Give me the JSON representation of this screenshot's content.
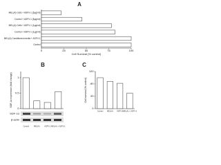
{
  "chart_data": [
    {
      "type": "hbar",
      "label": "A",
      "xlabel": "Cell Survival (% control)",
      "categories": [
        "MEL(A) Cells + ASFV-1 (5µg/ml)",
        "Control + ASFV-1 (5µg/ml)",
        "MEL(A) Cells + ASFV-1 (1µg/ml)",
        "Control + ASFV-1 (1µg/ml)",
        "MEL(A) Conditioned media + ASFV-1",
        "Control"
      ],
      "values": [
        22,
        45,
        78,
        82,
        100,
        100
      ],
      "color": "#ffffff",
      "xlim": [
        0,
        100
      ],
      "xticks": [
        0,
        25,
        50,
        75,
        100
      ]
    },
    {
      "type": "bar",
      "label": "B",
      "ylabel": "SDF-1α expression (fold change)",
      "categories": [
        "Control",
        "MEL(A)",
        "ASFV-1",
        "MEL(A) + ASFV-1"
      ],
      "values": [
        1.0,
        0.25,
        0.2,
        0.55
      ],
      "color": "#ffffff",
      "ylim": [
        0,
        1.2
      ],
      "yticks": [
        0,
        0.5,
        1
      ],
      "blot": [
        "SDF-1α",
        "β-actin"
      ]
    },
    {
      "type": "bar",
      "label": "C",
      "ylabel": "Cell survival (% control)",
      "categories": [
        "Control",
        "MEL(A)",
        "ASFV-1",
        "MEL(A) + ASFV-1"
      ],
      "values": [
        100,
        88,
        82,
        50
      ],
      "color": "#ffffff",
      "ylim": [
        0,
        120
      ],
      "yticks": [
        0,
        40,
        80,
        120
      ]
    }
  ]
}
